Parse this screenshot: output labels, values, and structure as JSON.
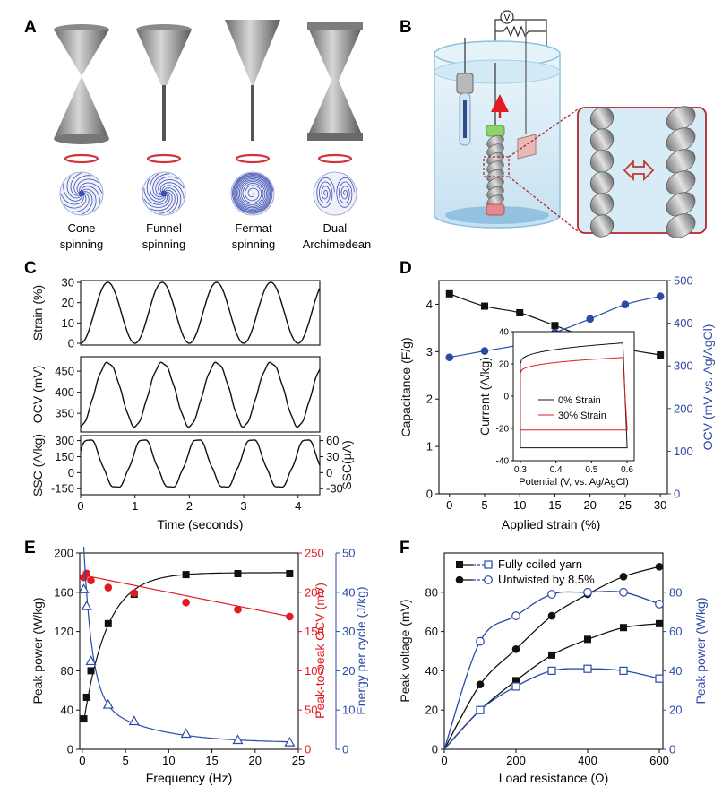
{
  "panel_labels": [
    "A",
    "B",
    "C",
    "D",
    "E",
    "F"
  ],
  "panel_a": {
    "labels": [
      [
        "Cone",
        "spinning"
      ],
      [
        "Funnel",
        "spinning"
      ],
      [
        "Fermat",
        "spinning"
      ],
      [
        "Dual-",
        "Archimedean"
      ]
    ]
  },
  "panel_b": {
    "meter": "V"
  },
  "colors": {
    "black": "#111111",
    "red": "#e11b22",
    "blue": "#2b4aa6",
    "darkred": "#b3242d",
    "water": "#d8ecf7"
  },
  "chart_data": [
    {
      "panel": "C",
      "type": "line",
      "xlabel": "Time (seconds)",
      "xlim": [
        0,
        4.4
      ],
      "xticks": [
        "0",
        "1",
        "2",
        "3",
        "4"
      ],
      "period_s": 1.0,
      "subplots": [
        {
          "name": "Strain",
          "ylabel": "Strain (%)",
          "ylim": [
            0,
            30
          ],
          "yticks": [
            "0",
            "10",
            "20",
            "30"
          ],
          "min": 0,
          "max": 30
        },
        {
          "name": "OCV",
          "ylabel": "OCV (mV)",
          "ylim": [
            310,
            480
          ],
          "yticks": [
            "350",
            "400",
            "450"
          ],
          "min": 318,
          "max": 470
        },
        {
          "name": "SSC",
          "ylabel": "SSC (A/kg)",
          "ylim": [
            -190,
            330
          ],
          "yticks": [
            "300",
            "150",
            "0",
            "-150"
          ],
          "min": -150,
          "max": 310,
          "ylabel_right": "SSC(µA)",
          "yticks_right": [
            "60",
            "30",
            "0",
            "-30"
          ]
        }
      ]
    },
    {
      "panel": "D",
      "type": "line",
      "xlabel": "Applied strain (%)",
      "ylabel": "Capacitance (F/g)",
      "ylabel_right": "OCV (mV vs. Ag/AgCl)",
      "xlim": [
        -1.5,
        31
      ],
      "ylim": [
        0,
        4.5
      ],
      "ylim_right": [
        0,
        500
      ],
      "xticks": [
        "0",
        "5",
        "10",
        "15",
        "20",
        "25",
        "30"
      ],
      "yticks": [
        "0",
        "1",
        "2",
        "3",
        "4"
      ],
      "yticks_right": [
        "0",
        "100",
        "200",
        "300",
        "400",
        "500"
      ],
      "x": [
        0,
        5,
        10,
        15,
        20,
        25,
        30
      ],
      "series": [
        {
          "name": "Capacitance",
          "axis": "left",
          "values": [
            4.22,
            3.96,
            3.82,
            3.55,
            3.28,
            3.06,
            2.93
          ]
        },
        {
          "name": "OCV",
          "axis": "right",
          "values": [
            320,
            335,
            350,
            378,
            410,
            444,
            463
          ]
        }
      ],
      "inset": {
        "xlabel": "Potential (V, vs. Ag/AgCl)",
        "ylabel": "Current (A/kg)",
        "xlim": [
          0.28,
          0.62
        ],
        "ylim": [
          -40,
          40
        ],
        "xticks": [
          "0.3",
          "0.4",
          "0.5",
          "0.6"
        ],
        "yticks": [
          "40",
          "20",
          "0",
          "-20",
          "-40"
        ],
        "legend": [
          "0% Strain",
          "30% Strain"
        ]
      }
    },
    {
      "panel": "E",
      "type": "scatter",
      "xlabel": "Frequency (Hz)",
      "ylabel": "Peak power (W/kg)",
      "ylabel_right1": "Peak-to-peak OCV (mV)",
      "ylabel_right2": "Energy per cycle (J/kg)",
      "xlim": [
        -0.3,
        25
      ],
      "ylim": [
        0,
        200
      ],
      "ylim_right1": [
        0,
        250
      ],
      "ylim_right2": [
        0,
        50
      ],
      "xticks": [
        "0",
        "5",
        "10",
        "15",
        "20",
        "25"
      ],
      "yticks": [
        "0",
        "40",
        "80",
        "120",
        "160",
        "200"
      ],
      "yticks_right1": [
        "0",
        "50",
        "100",
        "150",
        "200",
        "250"
      ],
      "yticks_right2": [
        "0",
        "10",
        "20",
        "30",
        "40",
        "50"
      ],
      "series": [
        {
          "name": "Peak power",
          "axis": "left",
          "marker": "square",
          "x": [
            0.17,
            0.5,
            1,
            3,
            6,
            12,
            18,
            24
          ],
          "values": [
            31,
            53,
            80,
            128,
            158,
            178,
            179,
            179
          ]
        },
        {
          "name": "Peak-to-peak OCV",
          "axis": "right1",
          "marker": "circle",
          "x": [
            0.17,
            0.5,
            1,
            3,
            6,
            12,
            18,
            24
          ],
          "values": [
            219,
            224,
            215,
            206,
            199,
            187,
            178,
            169
          ]
        },
        {
          "name": "Energy per cycle",
          "axis": "right2",
          "marker": "triangle",
          "x": [
            0.17,
            0.5,
            1,
            3,
            6,
            12,
            18,
            24
          ],
          "values": [
            40.8,
            36.5,
            22.5,
            11.4,
            7.2,
            4.0,
            2.4,
            1.8
          ]
        }
      ]
    },
    {
      "panel": "F",
      "type": "scatter",
      "xlabel": "Load resistance (Ω)",
      "ylabel": "Peak voltage (mV)",
      "ylabel_right": "Peak power (W/kg)",
      "xlim": [
        0,
        610
      ],
      "ylim": [
        0,
        100
      ],
      "ylim_right": [
        0,
        100
      ],
      "xticks": [
        "0",
        "200",
        "400",
        "600"
      ],
      "yticks": [
        "0",
        "20",
        "40",
        "60",
        "80"
      ],
      "yticks_right": [
        "0",
        "20",
        "40",
        "60",
        "80"
      ],
      "x": [
        100,
        200,
        300,
        400,
        500,
        600
      ],
      "legend": [
        "Fully coiled yarn",
        "Untwisted by 8.5%"
      ],
      "series": [
        {
          "name": "Fully coiled yarn voltage",
          "axis": "left",
          "marker": "square-filled",
          "values": [
            20,
            35,
            48,
            56,
            62,
            64
          ]
        },
        {
          "name": "Untwisted by 8.5% voltage",
          "axis": "left",
          "marker": "circle-filled",
          "values": [
            33,
            51,
            68,
            79,
            88,
            93
          ]
        },
        {
          "name": "Fully coiled yarn power",
          "axis": "right",
          "marker": "square-open",
          "values": [
            20,
            32,
            40,
            41,
            40,
            36
          ]
        },
        {
          "name": "Untwisted by 8.5% power",
          "axis": "right",
          "marker": "circle-open",
          "values": [
            55,
            68,
            79,
            80,
            80,
            74
          ]
        }
      ]
    }
  ]
}
